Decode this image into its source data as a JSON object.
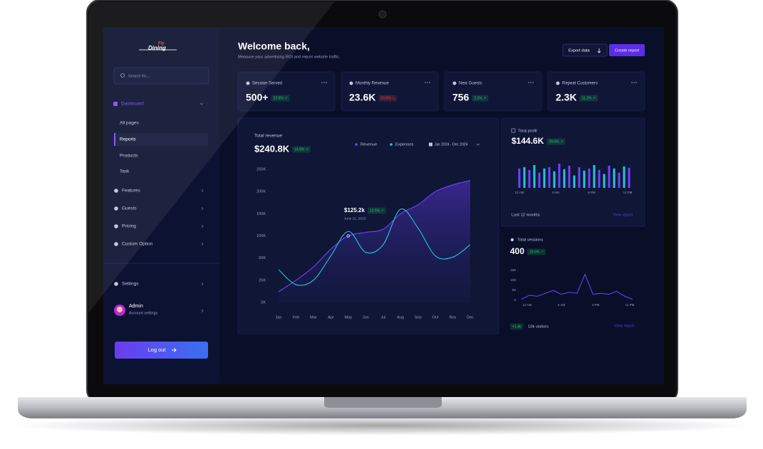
{
  "brand": {
    "top": "Fly",
    "bottom": "Dining"
  },
  "search": "Search for...",
  "nav": {
    "dashboard": "Dashboard",
    "sub": [
      "All pages",
      "Reports",
      "Products",
      "Task"
    ],
    "items": [
      "Features",
      "Guests",
      "Pricing",
      "Custom Option"
    ],
    "settings": "Settings"
  },
  "user": {
    "name": "Admin",
    "role": "Account settings"
  },
  "logout": "Log out",
  "header": {
    "title": "Welcome back,",
    "subtitle": "Measure your advertising ROI and report website traffic.",
    "export": "Export data",
    "create": "Create report"
  },
  "stats": [
    {
      "label": "Session Served",
      "value": "500+",
      "change": "22.8% ↗",
      "color": "#22c55e"
    },
    {
      "label": "Monthly Revenue",
      "value": "23.6K",
      "change": "10.8% ↘",
      "color": "#ef4444"
    },
    {
      "label": "New Guests",
      "value": "756",
      "change": "2.1% ↗",
      "color": "#22c55e"
    },
    {
      "label": "Repeat Customers",
      "value": "2.3K",
      "change": "11.2% ↗",
      "color": "#22c55e"
    }
  ],
  "revenue": {
    "title": "Total revenue",
    "total": "$240.8K",
    "change": "14.8% ↗",
    "period": "Jan 2024 - Dec 2024",
    "tooltip": {
      "value": "$125.2k",
      "change": "12.5% ↗",
      "date": "June 21, 2023"
    }
  },
  "profit": {
    "title": "Total profit",
    "total": "$144.6K",
    "change": "28.6% ↗",
    "period": "Last 12 months",
    "link": "View report"
  },
  "sessions": {
    "title": "Total sessions",
    "total": "400",
    "change": "18.6% ↗",
    "delta": "+1.4k",
    "visitors": "10k visitors",
    "link": "View report"
  },
  "chart_data": [
    {
      "type": "area",
      "categories": [
        "Jan",
        "Feb",
        "Mar",
        "Apr",
        "May",
        "Jun",
        "Jul",
        "Aug",
        "Sep",
        "Oct",
        "Nov",
        "Dec"
      ],
      "series": [
        {
          "name": "Revenue",
          "color": "#6e44ff",
          "values": [
            12,
            25,
            40,
            70,
            100,
            108,
            115,
            150,
            170,
            200,
            215,
            225
          ]
        },
        {
          "name": "Expenses",
          "color": "#1ec8e0",
          "values": [
            37,
            20,
            25,
            55,
            110,
            63,
            80,
            160,
            118,
            55,
            52,
            80
          ]
        }
      ],
      "ylim": [
        0,
        250
      ],
      "yticks": [
        {
          "value": 0,
          "label": "0K"
        },
        {
          "value": 25,
          "label": "25K"
        },
        {
          "value": 50,
          "label": "50K"
        },
        {
          "value": 100,
          "label": "100K"
        },
        {
          "value": 150,
          "label": "150K"
        },
        {
          "value": 200,
          "label": "200K"
        },
        {
          "value": 250,
          "label": "250K"
        }
      ]
    },
    {
      "type": "bar",
      "values": [
        28,
        30,
        26,
        33,
        22,
        28,
        30,
        24,
        35,
        27,
        32,
        18,
        30,
        25,
        28,
        33,
        26,
        20,
        32,
        28,
        22,
        31,
        29
      ],
      "colors": [
        "#6e44ff",
        "#1ec8e0"
      ],
      "xtick_labels": [
        "12 AM",
        "4 AM",
        "8 PM",
        "11 PM"
      ]
    },
    {
      "type": "line",
      "color": "#6e44ff",
      "values": [
        5,
        25,
        20,
        35,
        50,
        30,
        40,
        35,
        130,
        30,
        35,
        30,
        45,
        20,
        5
      ],
      "ylim": [
        0,
        150
      ],
      "yticks": [
        0,
        50,
        100,
        150
      ],
      "xtick_labels": [
        "12 AM",
        "4 AM",
        "4 PM",
        "11 PM"
      ]
    }
  ]
}
